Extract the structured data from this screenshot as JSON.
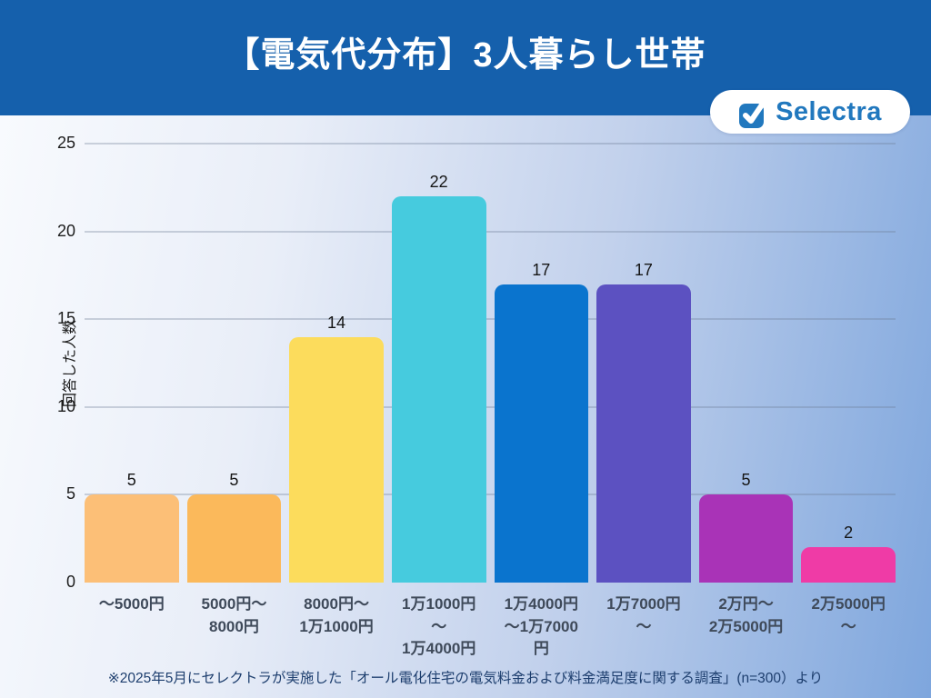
{
  "header": {
    "title": "【電気代分布】3人暮らし世帯"
  },
  "logo": {
    "text": "Selectra",
    "brand_blue": "#2178be"
  },
  "chart_data": {
    "type": "bar",
    "title": "【電気代分布】3人暮らし世帯",
    "xlabel": "",
    "ylabel": "回答した人数",
    "ylim": [
      0,
      25
    ],
    "yticks": [
      0,
      5,
      10,
      15,
      20,
      25
    ],
    "grid": true,
    "legend": false,
    "categories": [
      [
        "～5000円"
      ],
      [
        "5000円～",
        "8000円"
      ],
      [
        "8000円～",
        "1万1000円"
      ],
      [
        "1万1000円",
        "～",
        "1万4000円"
      ],
      [
        "1万4000円",
        "～1万7000",
        "円"
      ],
      [
        "1万7000円",
        "～"
      ],
      [
        "2万円～",
        "2万5000円"
      ],
      [
        "2万5000円",
        "～"
      ]
    ],
    "values": [
      5,
      5,
      14,
      22,
      17,
      17,
      5,
      2
    ],
    "colors": [
      "#fcbf77",
      "#fbb95b",
      "#fcdc5c",
      "#46cbde",
      "#0a74ce",
      "#5c51c1",
      "#a933b7",
      "#ef3ba6"
    ]
  },
  "footer": {
    "note": "※2025年5月にセレクトラが実施した「オール電化住宅の電気料金および料金満足度に関する調査」(n=300）より"
  }
}
